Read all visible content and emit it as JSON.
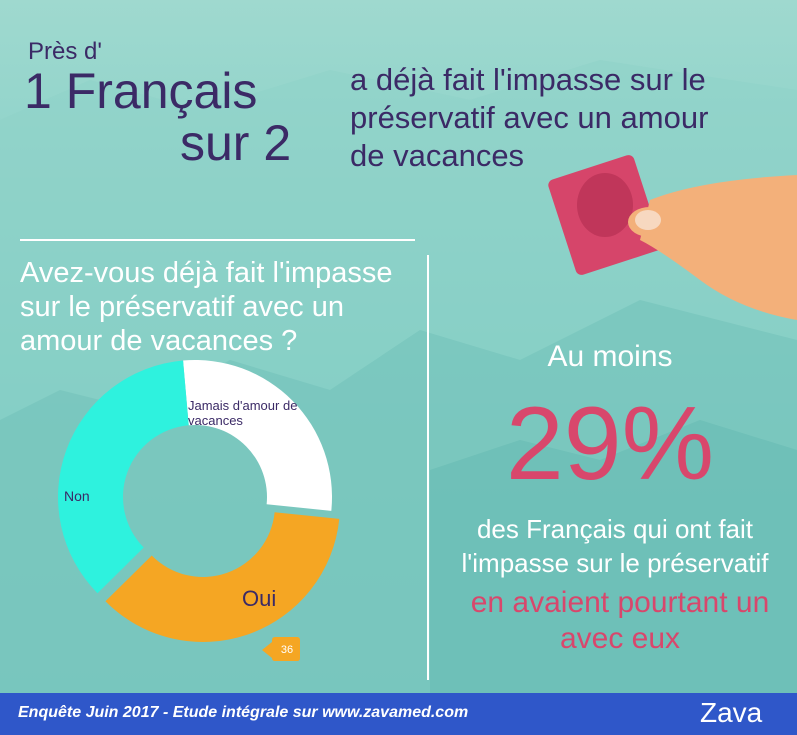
{
  "header": {
    "lead": "Près d'",
    "headline_1": "1 Français",
    "headline_2": "sur 2",
    "statement_lines": [
      "a déjà fait l'impasse sur le",
      "préservatif avec un amour",
      "de vacances"
    ]
  },
  "chart_data": {
    "type": "donut",
    "title": "Avez-vous déjà fait l'impasse sur le préservatif avec un amour de vacances ?",
    "categories": [
      "Jamais d'amour de vacances",
      "Oui",
      "Non"
    ],
    "values": [
      28,
      36,
      36
    ],
    "colors": [
      "#ffffff",
      "#f5a623",
      "#2ef2de"
    ]
  },
  "stat": {
    "intro": "Au moins",
    "figure": "29%",
    "line_1": "des Français qui ont fait l'impasse sur le préservatif",
    "line_2": "en avaient pourtant un avec eux"
  },
  "footer": {
    "text": "Enquête Juin 2017 - Etude intégrale sur www.zavamed.com",
    "brand": "Zava"
  }
}
